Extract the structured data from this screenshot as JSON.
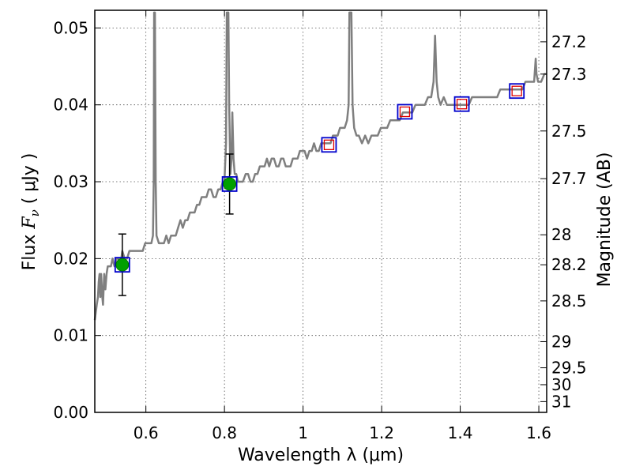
{
  "chart_data": {
    "type": "scatter",
    "xlabel": "Wavelength  λ (μm)",
    "ylabel": {
      "prefix": "Flux  ",
      "symbol": "F",
      "subscript": "ν",
      "suffix": "  ( μJy )"
    },
    "y2label": "Magnitude (AB)",
    "xlim": [
      0.47,
      1.62
    ],
    "ylim": [
      0.0,
      0.0523
    ],
    "xticks": [
      0.6,
      0.8,
      1.0,
      1.2,
      1.4,
      1.6
    ],
    "xtick_labels": [
      "0.6",
      "0.8",
      "1",
      "1.2",
      "1.4",
      "1.6"
    ],
    "yticks": [
      0.0,
      0.01,
      0.02,
      0.03,
      0.04,
      0.05
    ],
    "ytick_labels": [
      "0.00",
      "0.01",
      "0.02",
      "0.03",
      "0.04",
      "0.05"
    ],
    "y2ticks": [
      {
        "label": "27.2",
        "flux": 0.0482
      },
      {
        "label": "27.3",
        "flux": 0.044
      },
      {
        "label": "27.5",
        "flux": 0.0366
      },
      {
        "label": "27.7",
        "flux": 0.0304
      },
      {
        "label": "28",
        "flux": 0.0231
      },
      {
        "label": "28.2",
        "flux": 0.0192
      },
      {
        "label": "28.5",
        "flux": 0.0145
      },
      {
        "label": "29",
        "flux": 0.0092
      },
      {
        "label": "29.5",
        "flux": 0.0058
      },
      {
        "label": "30",
        "flux": 0.0036
      },
      {
        "label": "31",
        "flux": 0.0014
      }
    ],
    "grid": true,
    "colors": {
      "spectrum": "#7f7f7f",
      "observed": "#00a000",
      "model_box": "#0000cc",
      "prediction": "#dd0000",
      "errorbar": "#000000"
    },
    "spectrum": [
      [
        0.47,
        0.012
      ],
      [
        0.475,
        0.014
      ],
      [
        0.478,
        0.015
      ],
      [
        0.48,
        0.017
      ],
      [
        0.482,
        0.018
      ],
      [
        0.484,
        0.015
      ],
      [
        0.486,
        0.018
      ],
      [
        0.489,
        0.015
      ],
      [
        0.491,
        0.014
      ],
      [
        0.494,
        0.018
      ],
      [
        0.497,
        0.016
      ],
      [
        0.5,
        0.018
      ],
      [
        0.503,
        0.019
      ],
      [
        0.507,
        0.019
      ],
      [
        0.511,
        0.019
      ],
      [
        0.515,
        0.02
      ],
      [
        0.52,
        0.019
      ],
      [
        0.525,
        0.02
      ],
      [
        0.53,
        0.02
      ],
      [
        0.535,
        0.019
      ],
      [
        0.54,
        0.021
      ],
      [
        0.546,
        0.02
      ],
      [
        0.552,
        0.02
      ],
      [
        0.558,
        0.021
      ],
      [
        0.563,
        0.021
      ],
      [
        0.569,
        0.021
      ],
      [
        0.575,
        0.021
      ],
      [
        0.58,
        0.021
      ],
      [
        0.586,
        0.021
      ],
      [
        0.592,
        0.021
      ],
      [
        0.598,
        0.022
      ],
      [
        0.603,
        0.022
      ],
      [
        0.609,
        0.022
      ],
      [
        0.614,
        0.022
      ],
      [
        0.618,
        0.023
      ],
      [
        0.62,
        0.03
      ],
      [
        0.621,
        0.052
      ],
      [
        0.623,
        0.052
      ],
      [
        0.625,
        0.03
      ],
      [
        0.627,
        0.023
      ],
      [
        0.633,
        0.022
      ],
      [
        0.64,
        0.022
      ],
      [
        0.646,
        0.022
      ],
      [
        0.652,
        0.023
      ],
      [
        0.658,
        0.022
      ],
      [
        0.664,
        0.023
      ],
      [
        0.67,
        0.023
      ],
      [
        0.676,
        0.023
      ],
      [
        0.682,
        0.024
      ],
      [
        0.688,
        0.025
      ],
      [
        0.694,
        0.024
      ],
      [
        0.7,
        0.025
      ],
      [
        0.706,
        0.025
      ],
      [
        0.712,
        0.026
      ],
      [
        0.718,
        0.026
      ],
      [
        0.724,
        0.026
      ],
      [
        0.73,
        0.027
      ],
      [
        0.736,
        0.027
      ],
      [
        0.742,
        0.028
      ],
      [
        0.748,
        0.028
      ],
      [
        0.754,
        0.028
      ],
      [
        0.76,
        0.029
      ],
      [
        0.766,
        0.029
      ],
      [
        0.772,
        0.028
      ],
      [
        0.778,
        0.028
      ],
      [
        0.784,
        0.029
      ],
      [
        0.79,
        0.029
      ],
      [
        0.796,
        0.03
      ],
      [
        0.8,
        0.03
      ],
      [
        0.804,
        0.035
      ],
      [
        0.806,
        0.052
      ],
      [
        0.81,
        0.052
      ],
      [
        0.812,
        0.04
      ],
      [
        0.815,
        0.031
      ],
      [
        0.818,
        0.033
      ],
      [
        0.82,
        0.039
      ],
      [
        0.823,
        0.033
      ],
      [
        0.826,
        0.031
      ],
      [
        0.83,
        0.031
      ],
      [
        0.834,
        0.03
      ],
      [
        0.84,
        0.03
      ],
      [
        0.847,
        0.03
      ],
      [
        0.854,
        0.031
      ],
      [
        0.86,
        0.031
      ],
      [
        0.866,
        0.03
      ],
      [
        0.872,
        0.03
      ],
      [
        0.878,
        0.031
      ],
      [
        0.884,
        0.031
      ],
      [
        0.89,
        0.032
      ],
      [
        0.896,
        0.032
      ],
      [
        0.902,
        0.032
      ],
      [
        0.908,
        0.033
      ],
      [
        0.914,
        0.032
      ],
      [
        0.92,
        0.033
      ],
      [
        0.926,
        0.033
      ],
      [
        0.932,
        0.032
      ],
      [
        0.938,
        0.032
      ],
      [
        0.944,
        0.033
      ],
      [
        0.95,
        0.033
      ],
      [
        0.956,
        0.032
      ],
      [
        0.962,
        0.032
      ],
      [
        0.968,
        0.032
      ],
      [
        0.974,
        0.033
      ],
      [
        0.98,
        0.033
      ],
      [
        0.986,
        0.033
      ],
      [
        0.992,
        0.034
      ],
      [
        0.998,
        0.034
      ],
      [
        1.004,
        0.034
      ],
      [
        1.01,
        0.033
      ],
      [
        1.016,
        0.034
      ],
      [
        1.022,
        0.034
      ],
      [
        1.028,
        0.035
      ],
      [
        1.034,
        0.034
      ],
      [
        1.04,
        0.034
      ],
      [
        1.046,
        0.035
      ],
      [
        1.052,
        0.035
      ],
      [
        1.058,
        0.035
      ],
      [
        1.064,
        0.035
      ],
      [
        1.07,
        0.035
      ],
      [
        1.076,
        0.036
      ],
      [
        1.082,
        0.036
      ],
      [
        1.088,
        0.036
      ],
      [
        1.094,
        0.037
      ],
      [
        1.1,
        0.037
      ],
      [
        1.106,
        0.037
      ],
      [
        1.112,
        0.038
      ],
      [
        1.116,
        0.04
      ],
      [
        1.118,
        0.052
      ],
      [
        1.123,
        0.052
      ],
      [
        1.126,
        0.04
      ],
      [
        1.13,
        0.037
      ],
      [
        1.136,
        0.036
      ],
      [
        1.142,
        0.036
      ],
      [
        1.15,
        0.035
      ],
      [
        1.158,
        0.036
      ],
      [
        1.166,
        0.035
      ],
      [
        1.174,
        0.036
      ],
      [
        1.182,
        0.036
      ],
      [
        1.19,
        0.036
      ],
      [
        1.198,
        0.037
      ],
      [
        1.206,
        0.037
      ],
      [
        1.214,
        0.037
      ],
      [
        1.222,
        0.038
      ],
      [
        1.23,
        0.038
      ],
      [
        1.238,
        0.038
      ],
      [
        1.246,
        0.038
      ],
      [
        1.254,
        0.039
      ],
      [
        1.262,
        0.039
      ],
      [
        1.27,
        0.039
      ],
      [
        1.278,
        0.039
      ],
      [
        1.286,
        0.04
      ],
      [
        1.294,
        0.04
      ],
      [
        1.302,
        0.04
      ],
      [
        1.31,
        0.04
      ],
      [
        1.318,
        0.041
      ],
      [
        1.326,
        0.041
      ],
      [
        1.332,
        0.043
      ],
      [
        1.336,
        0.049
      ],
      [
        1.34,
        0.043
      ],
      [
        1.344,
        0.041
      ],
      [
        1.35,
        0.04
      ],
      [
        1.358,
        0.041
      ],
      [
        1.366,
        0.04
      ],
      [
        1.374,
        0.04
      ],
      [
        1.382,
        0.04
      ],
      [
        1.39,
        0.04
      ],
      [
        1.398,
        0.04
      ],
      [
        1.406,
        0.04
      ],
      [
        1.414,
        0.04
      ],
      [
        1.422,
        0.04
      ],
      [
        1.43,
        0.041
      ],
      [
        1.438,
        0.041
      ],
      [
        1.446,
        0.041
      ],
      [
        1.454,
        0.041
      ],
      [
        1.462,
        0.041
      ],
      [
        1.47,
        0.041
      ],
      [
        1.478,
        0.041
      ],
      [
        1.486,
        0.041
      ],
      [
        1.494,
        0.041
      ],
      [
        1.502,
        0.042
      ],
      [
        1.51,
        0.042
      ],
      [
        1.518,
        0.042
      ],
      [
        1.526,
        0.042
      ],
      [
        1.534,
        0.042
      ],
      [
        1.542,
        0.042
      ],
      [
        1.55,
        0.042
      ],
      [
        1.558,
        0.042
      ],
      [
        1.566,
        0.043
      ],
      [
        1.574,
        0.043
      ],
      [
        1.58,
        0.043
      ],
      [
        1.588,
        0.043
      ],
      [
        1.592,
        0.046
      ],
      [
        1.594,
        0.044
      ],
      [
        1.598,
        0.043
      ],
      [
        1.606,
        0.043
      ],
      [
        1.614,
        0.044
      ],
      [
        1.62,
        0.044
      ]
    ],
    "observed_points": [
      {
        "x": 0.54,
        "y": 0.0192,
        "yerr_low": 0.0152,
        "yerr_high": 0.0232
      },
      {
        "x": 0.813,
        "y": 0.0297,
        "yerr_low": 0.0258,
        "yerr_high": 0.0336
      }
    ],
    "model_points": [
      {
        "x": 0.54,
        "y": 0.0192
      },
      {
        "x": 0.813,
        "y": 0.0297
      },
      {
        "x": 1.066,
        "y": 0.0348
      },
      {
        "x": 1.259,
        "y": 0.0391
      },
      {
        "x": 1.404,
        "y": 0.0401
      },
      {
        "x": 1.544,
        "y": 0.0418
      }
    ],
    "prediction_points": [
      {
        "x": 1.066,
        "y": 0.0348
      },
      {
        "x": 1.259,
        "y": 0.0391
      },
      {
        "x": 1.404,
        "y": 0.0401
      },
      {
        "x": 1.544,
        "y": 0.0418
      }
    ]
  }
}
